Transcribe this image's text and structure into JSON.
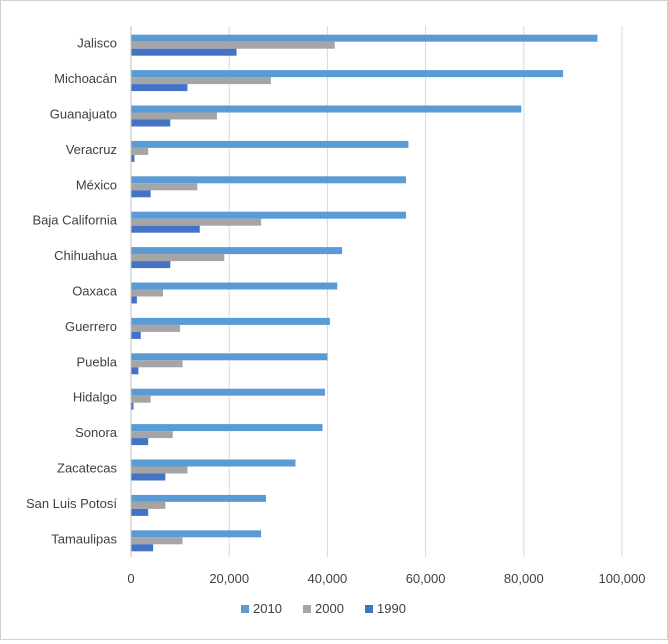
{
  "chart_data": {
    "type": "bar",
    "orientation": "horizontal",
    "title": "",
    "xlabel": "",
    "ylabel": "",
    "xlim": [
      0,
      100000
    ],
    "x_ticks": [
      0,
      20000,
      40000,
      60000,
      80000,
      100000
    ],
    "x_tick_labels": [
      "0",
      "20,000",
      "40,000",
      "60,000",
      "80,000",
      "100,000"
    ],
    "grid": "vertical",
    "legend_position": "bottom",
    "categories": [
      "Jalisco",
      "Michoacán",
      "Guanajuato",
      "Veracruz",
      "México",
      "Baja California",
      "Chihuahua",
      "Oaxaca",
      "Guerrero",
      "Puebla",
      "Hidalgo",
      "Sonora",
      "Zacatecas",
      "San Luis Potosí",
      "Tamaulipas"
    ],
    "series": [
      {
        "name": "2010",
        "color": "#5b9bd5",
        "values": [
          95000,
          88000,
          79500,
          56500,
          56000,
          56000,
          43000,
          42000,
          40500,
          40000,
          39500,
          39000,
          33500,
          27500,
          26500
        ]
      },
      {
        "name": "2000",
        "color": "#a5a5a5",
        "values": [
          41500,
          28500,
          17500,
          3500,
          13500,
          26500,
          19000,
          6500,
          10000,
          10500,
          4000,
          8500,
          11500,
          7000,
          10500
        ]
      },
      {
        "name": "1990",
        "color": "#4472c4",
        "values": [
          21500,
          11500,
          8000,
          700,
          4000,
          14000,
          8000,
          1200,
          2000,
          1500,
          500,
          3500,
          7000,
          3500,
          4500
        ]
      }
    ]
  }
}
